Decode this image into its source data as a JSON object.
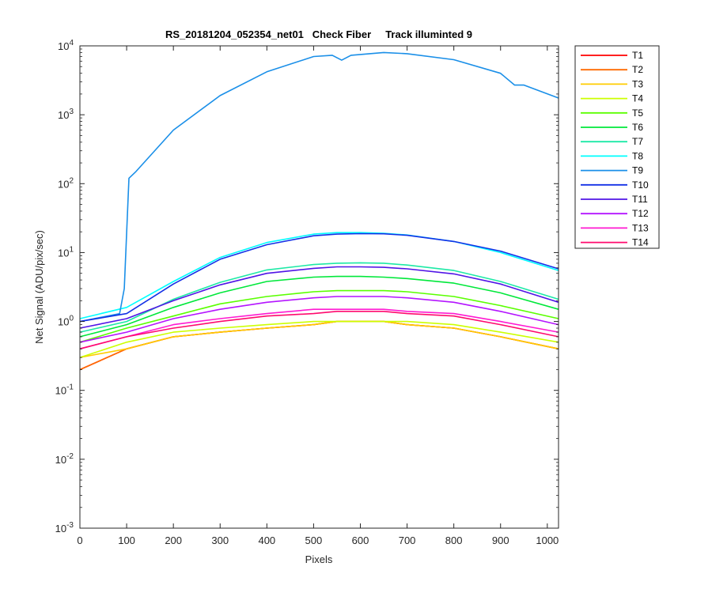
{
  "chart_data": {
    "type": "line",
    "title": "RS_20181204_052354_net01   Check Fiber     Track illuminted 9",
    "xlabel": "Pixels",
    "ylabel": "Net Signal (ADU/pix/sec)",
    "xlim": [
      0,
      1024
    ],
    "ylim": [
      0.001,
      10000
    ],
    "yscale": "log",
    "xticks": [
      "0",
      "100",
      "200",
      "300",
      "400",
      "500",
      "600",
      "700",
      "800",
      "900",
      "1000"
    ],
    "yticks": [
      {
        "base": "10",
        "exp": "-3"
      },
      {
        "base": "10",
        "exp": "-2"
      },
      {
        "base": "10",
        "exp": "-1"
      },
      {
        "base": "10",
        "exp": "0"
      },
      {
        "base": "10",
        "exp": "1"
      },
      {
        "base": "10",
        "exp": "2"
      },
      {
        "base": "10",
        "exp": "3"
      },
      {
        "base": "10",
        "exp": "4"
      }
    ],
    "grid": false,
    "legend_position": "outside-right",
    "series": [
      {
        "name": "T1",
        "color": "#ff0000",
        "x": [
          0,
          100,
          200,
          300,
          400,
          500,
          550,
          600,
          650,
          700,
          800,
          900,
          1024
        ],
        "values": [
          0.2,
          0.4,
          0.6,
          0.7,
          0.8,
          0.9,
          1.0,
          1.0,
          1.0,
          0.9,
          0.8,
          0.6,
          0.4
        ]
      },
      {
        "name": "T2",
        "color": "#ff6a00",
        "x": [
          0,
          100,
          200,
          300,
          400,
          500,
          550,
          600,
          650,
          700,
          800,
          900,
          1024
        ],
        "values": [
          0.2,
          0.4,
          0.6,
          0.7,
          0.8,
          0.9,
          1.0,
          1.0,
          1.0,
          0.9,
          0.8,
          0.6,
          0.4
        ]
      },
      {
        "name": "T3",
        "color": "#ffcc00",
        "x": [
          0,
          100,
          200,
          300,
          400,
          500,
          550,
          600,
          650,
          700,
          800,
          900,
          1024
        ],
        "values": [
          0.3,
          0.4,
          0.6,
          0.7,
          0.8,
          0.9,
          1.0,
          1.0,
          1.0,
          0.9,
          0.8,
          0.6,
          0.4
        ]
      },
      {
        "name": "T4",
        "color": "#ccff00",
        "x": [
          0,
          100,
          200,
          300,
          400,
          500,
          550,
          600,
          650,
          700,
          800,
          900,
          1024
        ],
        "values": [
          0.3,
          0.5,
          0.7,
          0.8,
          0.9,
          1.0,
          1.0,
          1.0,
          1.0,
          1.0,
          0.9,
          0.7,
          0.5
        ]
      },
      {
        "name": "T5",
        "color": "#5aff00",
        "x": [
          0,
          100,
          200,
          300,
          400,
          500,
          550,
          600,
          650,
          700,
          800,
          900,
          1024
        ],
        "values": [
          0.5,
          0.8,
          1.2,
          1.8,
          2.3,
          2.7,
          2.8,
          2.8,
          2.8,
          2.7,
          2.3,
          1.7,
          1.1
        ]
      },
      {
        "name": "T6",
        "color": "#00e83a",
        "x": [
          0,
          100,
          200,
          300,
          400,
          500,
          550,
          600,
          650,
          700,
          800,
          900,
          1024
        ],
        "values": [
          0.6,
          0.9,
          1.6,
          2.6,
          3.8,
          4.4,
          4.5,
          4.5,
          4.4,
          4.2,
          3.6,
          2.6,
          1.5
        ]
      },
      {
        "name": "T7",
        "color": "#1de9a6",
        "x": [
          0,
          100,
          200,
          300,
          400,
          500,
          550,
          600,
          650,
          700,
          800,
          900,
          1024
        ],
        "values": [
          0.7,
          1.0,
          2.1,
          3.7,
          5.6,
          6.7,
          7.0,
          7.1,
          7.0,
          6.6,
          5.5,
          3.8,
          2.1
        ]
      },
      {
        "name": "T8",
        "color": "#00ffff",
        "x": [
          0,
          100,
          200,
          300,
          400,
          500,
          550,
          600,
          650,
          700,
          800,
          900,
          1024
        ],
        "values": [
          1.1,
          1.6,
          3.8,
          8.5,
          14,
          18.5,
          19.5,
          19.5,
          19,
          18,
          14.5,
          10,
          5.5
        ]
      },
      {
        "name": "T9",
        "color": "#1a8fe8",
        "x": [
          0,
          85,
          95,
          105,
          120,
          200,
          300,
          400,
          500,
          540,
          560,
          580,
          650,
          700,
          800,
          900,
          930,
          950,
          1024
        ],
        "values": [
          1.0,
          1.3,
          3.0,
          120,
          150,
          600,
          1900,
          4200,
          7000,
          7300,
          6200,
          7300,
          8000,
          7700,
          6300,
          4000,
          2700,
          2700,
          1750
        ]
      },
      {
        "name": "T10",
        "color": "#1430e6",
        "x": [
          0,
          100,
          200,
          300,
          400,
          500,
          550,
          600,
          650,
          700,
          800,
          900,
          1024
        ],
        "values": [
          1.0,
          1.3,
          3.5,
          8.0,
          13,
          17.5,
          18.5,
          18.8,
          18.7,
          17.8,
          14.5,
          10.5,
          5.8
        ]
      },
      {
        "name": "T11",
        "color": "#5014e6",
        "x": [
          0,
          100,
          200,
          300,
          400,
          500,
          550,
          600,
          650,
          700,
          800,
          900,
          1024
        ],
        "values": [
          0.8,
          1.1,
          2.0,
          3.4,
          5.0,
          5.9,
          6.2,
          6.2,
          6.1,
          5.8,
          4.9,
          3.5,
          1.9
        ]
      },
      {
        "name": "T12",
        "color": "#b414ff",
        "x": [
          0,
          100,
          200,
          300,
          400,
          500,
          550,
          600,
          650,
          700,
          800,
          900,
          1024
        ],
        "values": [
          0.5,
          0.7,
          1.1,
          1.5,
          1.9,
          2.2,
          2.3,
          2.3,
          2.3,
          2.2,
          1.9,
          1.4,
          0.9
        ]
      },
      {
        "name": "T13",
        "color": "#ff1ad2",
        "x": [
          0,
          100,
          200,
          300,
          400,
          500,
          550,
          600,
          650,
          700,
          800,
          900,
          1024
        ],
        "values": [
          0.4,
          0.6,
          0.9,
          1.1,
          1.3,
          1.5,
          1.5,
          1.5,
          1.5,
          1.4,
          1.3,
          1.0,
          0.7
        ]
      },
      {
        "name": "T14",
        "color": "#ff0a6e",
        "x": [
          0,
          100,
          200,
          300,
          400,
          500,
          550,
          600,
          650,
          700,
          800,
          900,
          1024
        ],
        "values": [
          0.4,
          0.6,
          0.8,
          1.0,
          1.2,
          1.3,
          1.4,
          1.4,
          1.4,
          1.3,
          1.2,
          0.9,
          0.6
        ]
      }
    ]
  }
}
